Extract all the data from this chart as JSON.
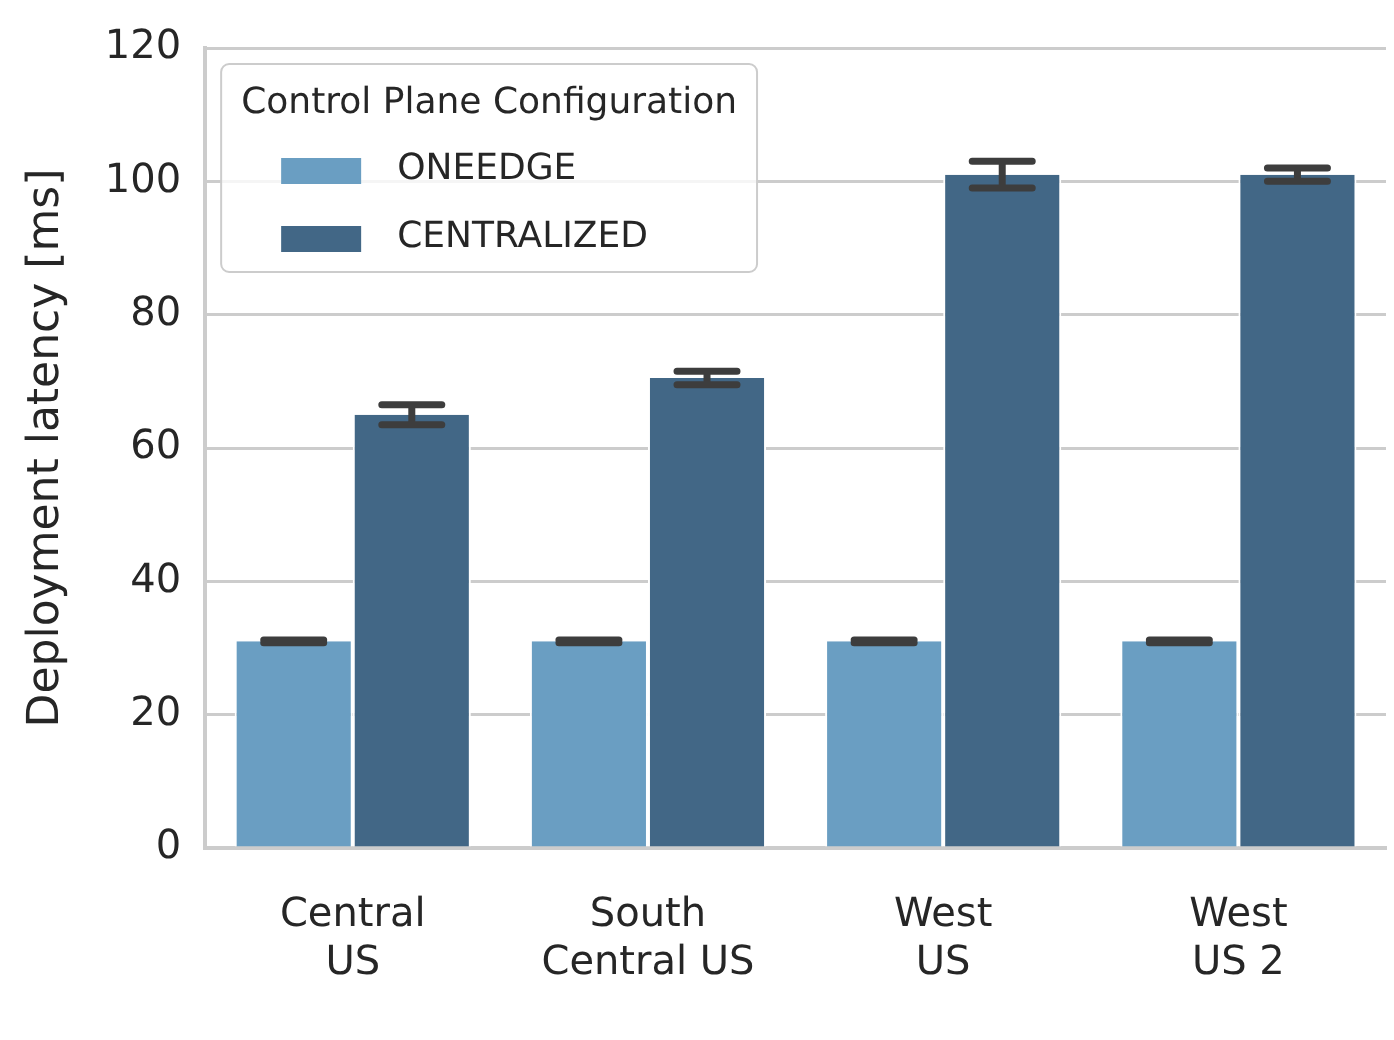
{
  "chart_data": {
    "type": "bar",
    "ylabel": "Deployment latency [ms]",
    "legend_title": "Control Plane Configuration",
    "categories": [
      "Central US",
      "South Central US",
      "West US",
      "West US 2"
    ],
    "series": [
      {
        "name": "ONEEDGE",
        "color": "#6a9ec2",
        "values": [
          31,
          31,
          31,
          31
        ],
        "errors": [
          0.2,
          0.2,
          0.2,
          0.2
        ]
      },
      {
        "name": "CENTRALIZED",
        "color": "#426786",
        "values": [
          65,
          70.5,
          101,
          101
        ],
        "errors": [
          1.5,
          1,
          2,
          1
        ]
      }
    ],
    "ylim": [
      0,
      120
    ],
    "yticks": [
      0,
      20,
      40,
      60,
      80,
      100,
      120
    ],
    "grid": "y",
    "legend": "top left"
  }
}
